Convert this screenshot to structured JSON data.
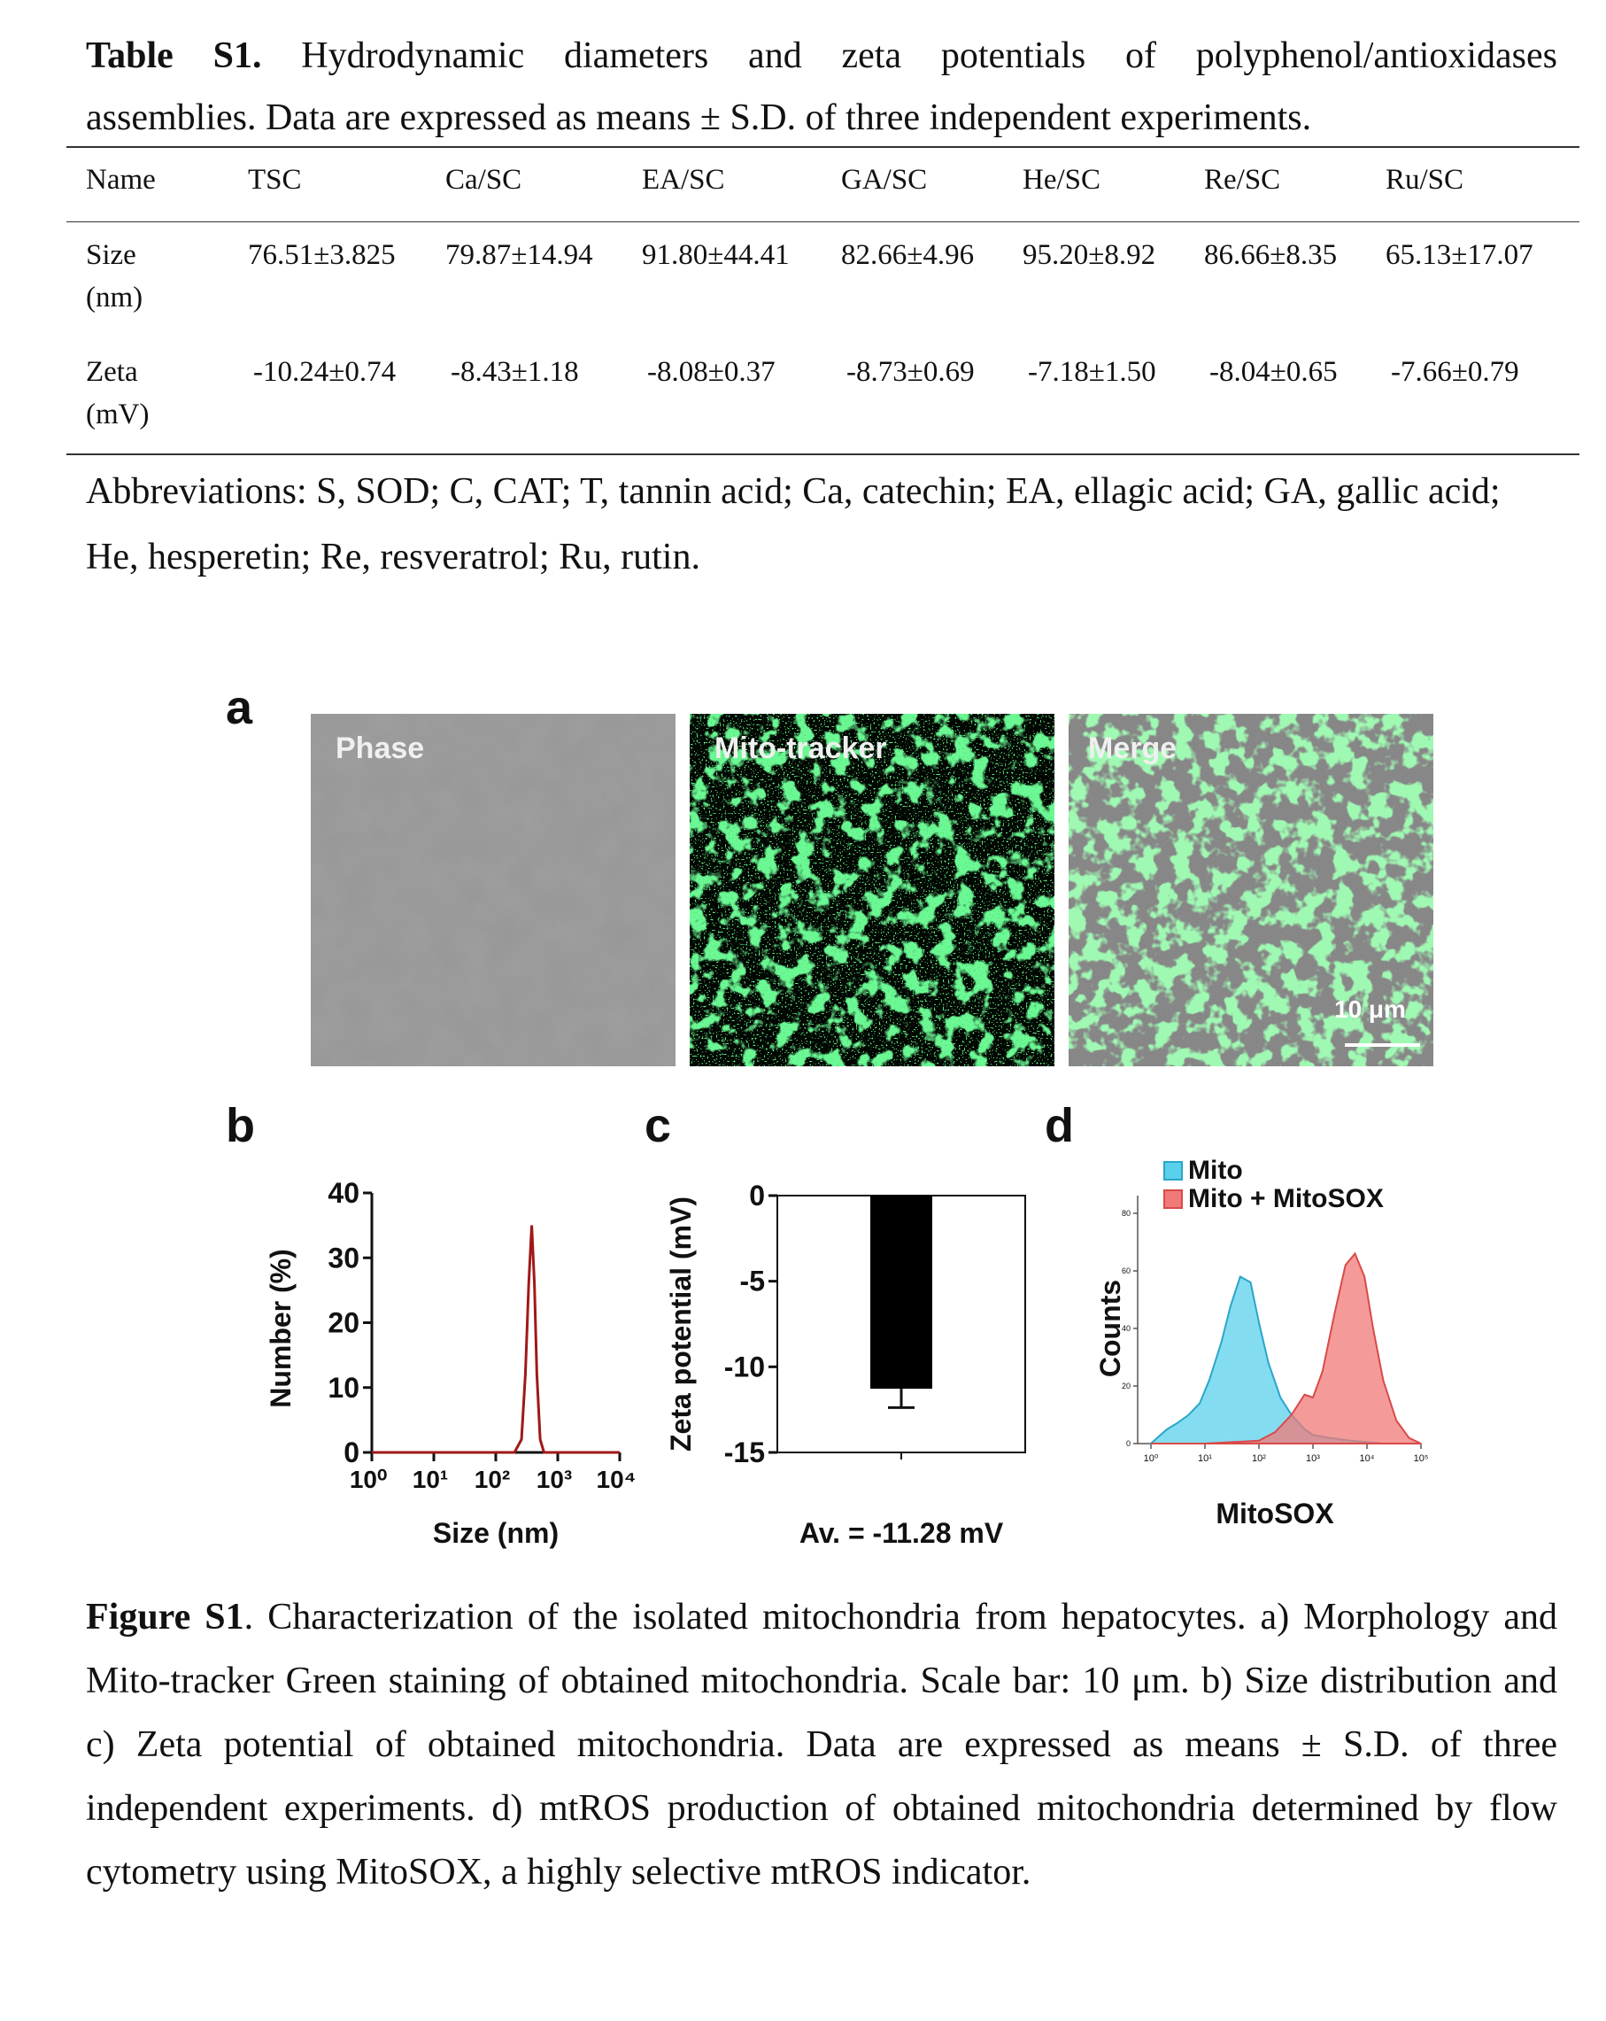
{
  "table": {
    "label": "Table S1.",
    "caption_line1": "Hydrodynamic diameters and zeta potentials of polyphenol/antioxidases",
    "caption_line2": "assemblies. Data are expressed as means ± S.D. of three independent experiments.",
    "headers": [
      "Name",
      "TSC",
      "Ca/SC",
      "EA/SC",
      "GA/SC",
      "He/SC",
      "Re/SC",
      "Ru/SC"
    ],
    "rows": [
      {
        "name_line1": "Size",
        "name_line2": "(nm)",
        "values": [
          "76.51±3.825",
          "79.87±14.94",
          "91.80±44.41",
          "82.66±4.96",
          "95.20±8.92",
          "86.66±8.35",
          "65.13±17.07"
        ]
      },
      {
        "name_line1": "Zeta",
        "name_line2": "(mV)",
        "values": [
          "-10.24±0.74",
          "-8.43±1.18",
          "-8.08±0.37",
          "-8.73±0.69",
          "-7.18±1.50",
          "-8.04±0.65",
          "-7.66±0.79"
        ]
      }
    ],
    "abbreviations": "Abbreviations: S, SOD; C, CAT; T, tannin acid; Ca, catechin; EA, ellagic acid; GA, gallic acid; He, hesperetin; Re, resveratrol; Ru, rutin."
  },
  "figure": {
    "panel_a": {
      "letter": "a",
      "images": [
        {
          "label": "Phase"
        },
        {
          "label": "Mito-tracker"
        },
        {
          "label": "Merge"
        }
      ],
      "scale_bar": "10 μm"
    },
    "panel_b": {
      "letter": "b"
    },
    "panel_c": {
      "letter": "c"
    },
    "panel_d": {
      "letter": "d"
    },
    "caption_label": "Figure S1",
    "caption_text": ". Characterization of the isolated mitochondria from hepatocytes. a) Morphology and Mito-tracker Green staining of obtained mitochondria. Scale bar: 10 μm. b) Size distribution and c) Zeta potential of obtained mitochondria. Data are expressed as means ± S.D. of three independent experiments. d) mtROS production of obtained mitochondria determined by flow cytometry using MitoSOX, a highly selective mtROS indicator."
  },
  "chart_data": [
    {
      "type": "line",
      "panel": "b",
      "xlabel": "Size (nm)",
      "ylabel": "Number (%)",
      "x_scale": "log",
      "xlim": [
        1,
        10000
      ],
      "ylim": [
        0,
        40
      ],
      "xticks": [
        "10⁰",
        "10¹",
        "10²",
        "10³",
        "10⁴"
      ],
      "yticks": [
        "0",
        "10",
        "20",
        "30",
        "40"
      ],
      "x": [
        1,
        10,
        100,
        200,
        260,
        300,
        340,
        380,
        420,
        460,
        520,
        600,
        800,
        10000
      ],
      "y": [
        0,
        0,
        0,
        0,
        2,
        12,
        26,
        35,
        26,
        12,
        2,
        0,
        0,
        0
      ],
      "color": "#a01818"
    },
    {
      "type": "bar",
      "panel": "c",
      "ylabel": "Zeta potential (mV)",
      "ylim": [
        -15,
        0
      ],
      "yticks": [
        "0",
        "-5",
        "-10",
        "-15"
      ],
      "values": [
        -11.28
      ],
      "error": [
        1.1
      ],
      "annotation": "Av. = -11.28 mV",
      "color": "#000000"
    },
    {
      "type": "area",
      "panel": "d",
      "xlabel": "MitoSOX",
      "ylabel": "Counts",
      "x_scale": "log",
      "xlim": [
        1,
        100000
      ],
      "ylim": [
        0,
        80
      ],
      "xticks": [
        "10⁰",
        "10¹",
        "10²",
        "10³",
        "10⁴",
        "10⁵"
      ],
      "yticks": [
        "0",
        "20",
        "40",
        "60",
        "80"
      ],
      "legend_position": "top",
      "series": [
        {
          "name": "Mito",
          "color": "#5bd0ec",
          "x": [
            1,
            1.5,
            2,
            3,
            5,
            8,
            12,
            20,
            30,
            45,
            70,
            100,
            150,
            250,
            400,
            700,
            1000,
            2000,
            5000,
            20000,
            100000
          ],
          "y": [
            0,
            3,
            5,
            7,
            10,
            14,
            22,
            35,
            48,
            58,
            56,
            42,
            28,
            16,
            10,
            5,
            3,
            2,
            1,
            0,
            0
          ]
        },
        {
          "name": "Mito + MitoSOX",
          "color": "#f07a78",
          "x": [
            1,
            10,
            100,
            200,
            400,
            700,
            1000,
            1500,
            2500,
            4000,
            6000,
            9000,
            13000,
            20000,
            35000,
            60000,
            100000
          ],
          "y": [
            0,
            0,
            1,
            4,
            10,
            17,
            16,
            25,
            45,
            62,
            66,
            58,
            40,
            22,
            8,
            2,
            0
          ]
        }
      ]
    }
  ]
}
